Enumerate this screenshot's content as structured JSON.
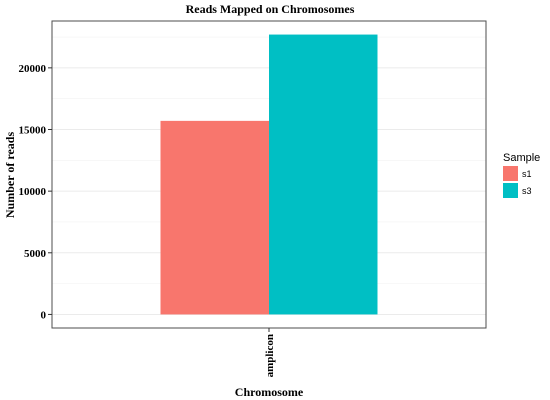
{
  "chart_data": {
    "type": "bar",
    "title": "Reads Mapped on Chromosomes",
    "xlabel": "Chromosome",
    "ylabel": "Number of reads",
    "categories": [
      "amplicon"
    ],
    "series": [
      {
        "name": "s1",
        "values": [
          15700
        ],
        "color": "#F8766D"
      },
      {
        "name": "s3",
        "values": [
          22700
        ],
        "color": "#00BFC4"
      }
    ],
    "ylim": [
      -1100,
      23800
    ],
    "yticks": [
      0,
      5000,
      10000,
      15000,
      20000
    ],
    "ytick_labels": [
      "0",
      "5000",
      "10000",
      "15000",
      "20000"
    ],
    "grid": true,
    "legend": {
      "title": "Sample",
      "placement": "right"
    }
  }
}
